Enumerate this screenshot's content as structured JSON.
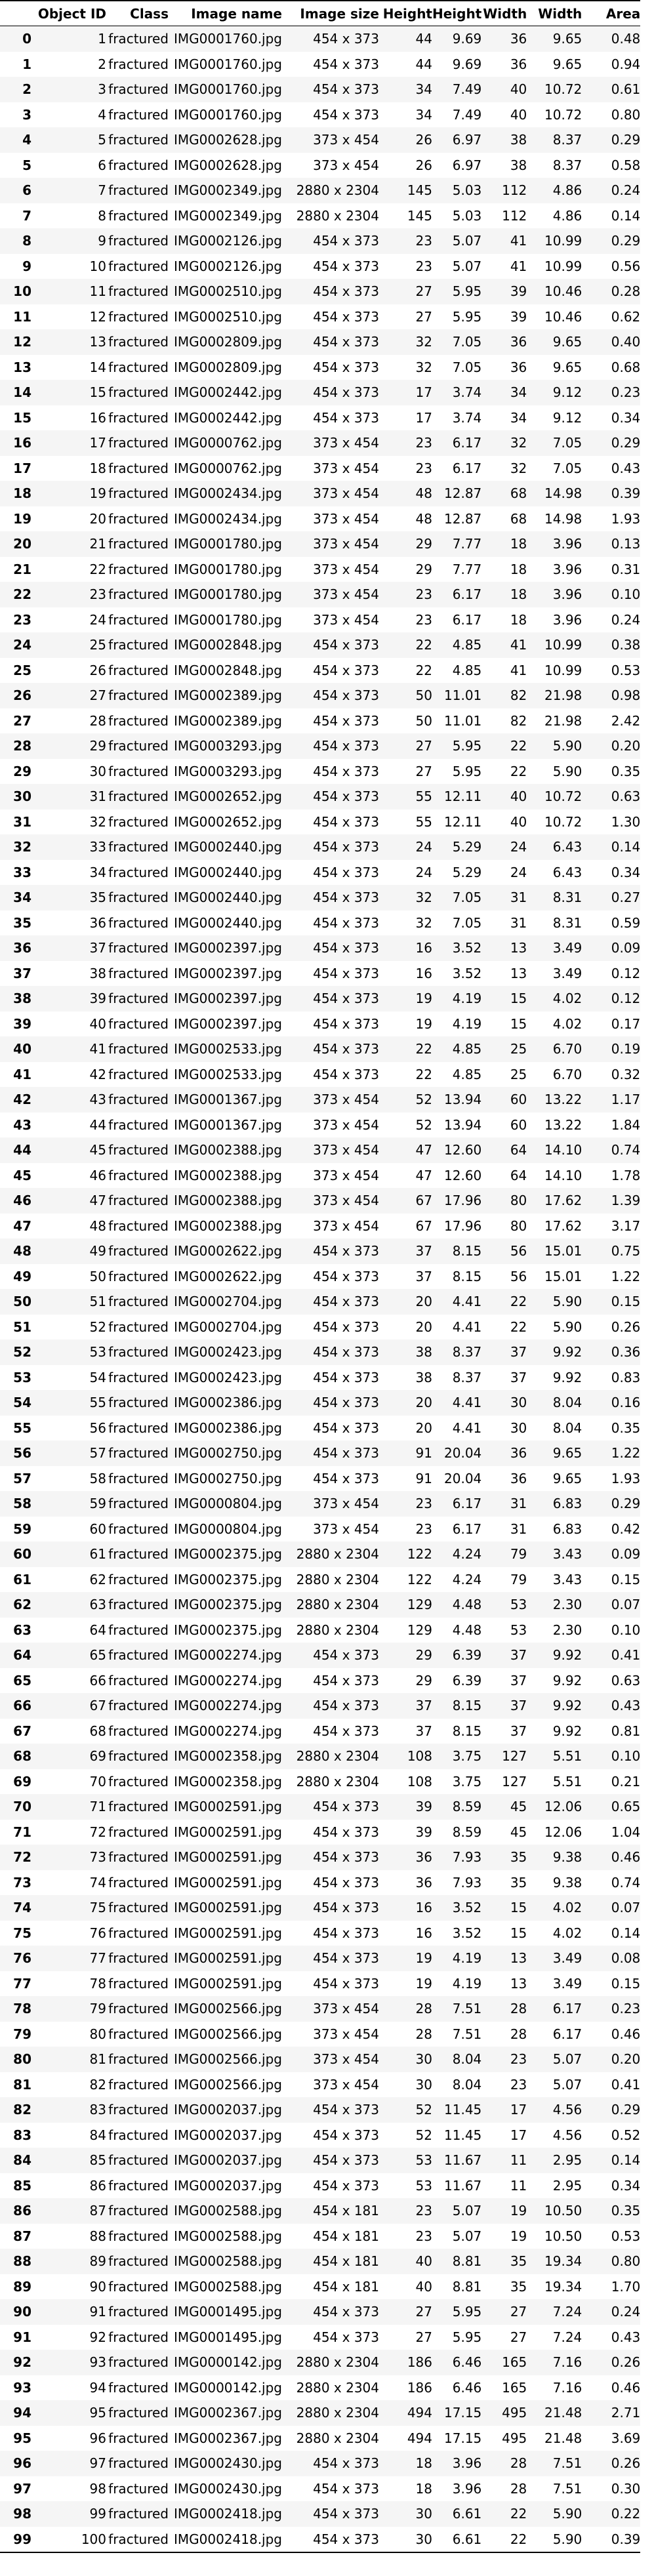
{
  "table": {
    "columns": [
      "",
      "Object ID",
      "Class",
      "Image name",
      "Image size",
      "Height",
      "Height",
      "Width",
      "Width",
      "Area"
    ],
    "rows": [
      [
        "0",
        "1",
        "fractured",
        "IMG0001760.jpg",
        "454 x 373",
        "44",
        "9.69",
        "36",
        "9.65",
        "0.48"
      ],
      [
        "1",
        "2",
        "fractured",
        "IMG0001760.jpg",
        "454 x 373",
        "44",
        "9.69",
        "36",
        "9.65",
        "0.94"
      ],
      [
        "2",
        "3",
        "fractured",
        "IMG0001760.jpg",
        "454 x 373",
        "34",
        "7.49",
        "40",
        "10.72",
        "0.61"
      ],
      [
        "3",
        "4",
        "fractured",
        "IMG0001760.jpg",
        "454 x 373",
        "34",
        "7.49",
        "40",
        "10.72",
        "0.80"
      ],
      [
        "4",
        "5",
        "fractured",
        "IMG0002628.jpg",
        "373 x 454",
        "26",
        "6.97",
        "38",
        "8.37",
        "0.29"
      ],
      [
        "5",
        "6",
        "fractured",
        "IMG0002628.jpg",
        "373 x 454",
        "26",
        "6.97",
        "38",
        "8.37",
        "0.58"
      ],
      [
        "6",
        "7",
        "fractured",
        "IMG0002349.jpg",
        "2880 x 2304",
        "145",
        "5.03",
        "112",
        "4.86",
        "0.24"
      ],
      [
        "7",
        "8",
        "fractured",
        "IMG0002349.jpg",
        "2880 x 2304",
        "145",
        "5.03",
        "112",
        "4.86",
        "0.14"
      ],
      [
        "8",
        "9",
        "fractured",
        "IMG0002126.jpg",
        "454 x 373",
        "23",
        "5.07",
        "41",
        "10.99",
        "0.29"
      ],
      [
        "9",
        "10",
        "fractured",
        "IMG0002126.jpg",
        "454 x 373",
        "23",
        "5.07",
        "41",
        "10.99",
        "0.56"
      ],
      [
        "10",
        "11",
        "fractured",
        "IMG0002510.jpg",
        "454 x 373",
        "27",
        "5.95",
        "39",
        "10.46",
        "0.28"
      ],
      [
        "11",
        "12",
        "fractured",
        "IMG0002510.jpg",
        "454 x 373",
        "27",
        "5.95",
        "39",
        "10.46",
        "0.62"
      ],
      [
        "12",
        "13",
        "fractured",
        "IMG0002809.jpg",
        "454 x 373",
        "32",
        "7.05",
        "36",
        "9.65",
        "0.40"
      ],
      [
        "13",
        "14",
        "fractured",
        "IMG0002809.jpg",
        "454 x 373",
        "32",
        "7.05",
        "36",
        "9.65",
        "0.68"
      ],
      [
        "14",
        "15",
        "fractured",
        "IMG0002442.jpg",
        "454 x 373",
        "17",
        "3.74",
        "34",
        "9.12",
        "0.23"
      ],
      [
        "15",
        "16",
        "fractured",
        "IMG0002442.jpg",
        "454 x 373",
        "17",
        "3.74",
        "34",
        "9.12",
        "0.34"
      ],
      [
        "16",
        "17",
        "fractured",
        "IMG0000762.jpg",
        "373 x 454",
        "23",
        "6.17",
        "32",
        "7.05",
        "0.29"
      ],
      [
        "17",
        "18",
        "fractured",
        "IMG0000762.jpg",
        "373 x 454",
        "23",
        "6.17",
        "32",
        "7.05",
        "0.43"
      ],
      [
        "18",
        "19",
        "fractured",
        "IMG0002434.jpg",
        "373 x 454",
        "48",
        "12.87",
        "68",
        "14.98",
        "0.39"
      ],
      [
        "19",
        "20",
        "fractured",
        "IMG0002434.jpg",
        "373 x 454",
        "48",
        "12.87",
        "68",
        "14.98",
        "1.93"
      ],
      [
        "20",
        "21",
        "fractured",
        "IMG0001780.jpg",
        "373 x 454",
        "29",
        "7.77",
        "18",
        "3.96",
        "0.13"
      ],
      [
        "21",
        "22",
        "fractured",
        "IMG0001780.jpg",
        "373 x 454",
        "29",
        "7.77",
        "18",
        "3.96",
        "0.31"
      ],
      [
        "22",
        "23",
        "fractured",
        "IMG0001780.jpg",
        "373 x 454",
        "23",
        "6.17",
        "18",
        "3.96",
        "0.10"
      ],
      [
        "23",
        "24",
        "fractured",
        "IMG0001780.jpg",
        "373 x 454",
        "23",
        "6.17",
        "18",
        "3.96",
        "0.24"
      ],
      [
        "24",
        "25",
        "fractured",
        "IMG0002848.jpg",
        "454 x 373",
        "22",
        "4.85",
        "41",
        "10.99",
        "0.38"
      ],
      [
        "25",
        "26",
        "fractured",
        "IMG0002848.jpg",
        "454 x 373",
        "22",
        "4.85",
        "41",
        "10.99",
        "0.53"
      ],
      [
        "26",
        "27",
        "fractured",
        "IMG0002389.jpg",
        "454 x 373",
        "50",
        "11.01",
        "82",
        "21.98",
        "0.98"
      ],
      [
        "27",
        "28",
        "fractured",
        "IMG0002389.jpg",
        "454 x 373",
        "50",
        "11.01",
        "82",
        "21.98",
        "2.42"
      ],
      [
        "28",
        "29",
        "fractured",
        "IMG0003293.jpg",
        "454 x 373",
        "27",
        "5.95",
        "22",
        "5.90",
        "0.20"
      ],
      [
        "29",
        "30",
        "fractured",
        "IMG0003293.jpg",
        "454 x 373",
        "27",
        "5.95",
        "22",
        "5.90",
        "0.35"
      ],
      [
        "30",
        "31",
        "fractured",
        "IMG0002652.jpg",
        "454 x 373",
        "55",
        "12.11",
        "40",
        "10.72",
        "0.63"
      ],
      [
        "31",
        "32",
        "fractured",
        "IMG0002652.jpg",
        "454 x 373",
        "55",
        "12.11",
        "40",
        "10.72",
        "1.30"
      ],
      [
        "32",
        "33",
        "fractured",
        "IMG0002440.jpg",
        "454 x 373",
        "24",
        "5.29",
        "24",
        "6.43",
        "0.14"
      ],
      [
        "33",
        "34",
        "fractured",
        "IMG0002440.jpg",
        "454 x 373",
        "24",
        "5.29",
        "24",
        "6.43",
        "0.34"
      ],
      [
        "34",
        "35",
        "fractured",
        "IMG0002440.jpg",
        "454 x 373",
        "32",
        "7.05",
        "31",
        "8.31",
        "0.27"
      ],
      [
        "35",
        "36",
        "fractured",
        "IMG0002440.jpg",
        "454 x 373",
        "32",
        "7.05",
        "31",
        "8.31",
        "0.59"
      ],
      [
        "36",
        "37",
        "fractured",
        "IMG0002397.jpg",
        "454 x 373",
        "16",
        "3.52",
        "13",
        "3.49",
        "0.09"
      ],
      [
        "37",
        "38",
        "fractured",
        "IMG0002397.jpg",
        "454 x 373",
        "16",
        "3.52",
        "13",
        "3.49",
        "0.12"
      ],
      [
        "38",
        "39",
        "fractured",
        "IMG0002397.jpg",
        "454 x 373",
        "19",
        "4.19",
        "15",
        "4.02",
        "0.12"
      ],
      [
        "39",
        "40",
        "fractured",
        "IMG0002397.jpg",
        "454 x 373",
        "19",
        "4.19",
        "15",
        "4.02",
        "0.17"
      ],
      [
        "40",
        "41",
        "fractured",
        "IMG0002533.jpg",
        "454 x 373",
        "22",
        "4.85",
        "25",
        "6.70",
        "0.19"
      ],
      [
        "41",
        "42",
        "fractured",
        "IMG0002533.jpg",
        "454 x 373",
        "22",
        "4.85",
        "25",
        "6.70",
        "0.32"
      ],
      [
        "42",
        "43",
        "fractured",
        "IMG0001367.jpg",
        "373 x 454",
        "52",
        "13.94",
        "60",
        "13.22",
        "1.17"
      ],
      [
        "43",
        "44",
        "fractured",
        "IMG0001367.jpg",
        "373 x 454",
        "52",
        "13.94",
        "60",
        "13.22",
        "1.84"
      ],
      [
        "44",
        "45",
        "fractured",
        "IMG0002388.jpg",
        "373 x 454",
        "47",
        "12.60",
        "64",
        "14.10",
        "0.74"
      ],
      [
        "45",
        "46",
        "fractured",
        "IMG0002388.jpg",
        "373 x 454",
        "47",
        "12.60",
        "64",
        "14.10",
        "1.78"
      ],
      [
        "46",
        "47",
        "fractured",
        "IMG0002388.jpg",
        "373 x 454",
        "67",
        "17.96",
        "80",
        "17.62",
        "1.39"
      ],
      [
        "47",
        "48",
        "fractured",
        "IMG0002388.jpg",
        "373 x 454",
        "67",
        "17.96",
        "80",
        "17.62",
        "3.17"
      ],
      [
        "48",
        "49",
        "fractured",
        "IMG0002622.jpg",
        "454 x 373",
        "37",
        "8.15",
        "56",
        "15.01",
        "0.75"
      ],
      [
        "49",
        "50",
        "fractured",
        "IMG0002622.jpg",
        "454 x 373",
        "37",
        "8.15",
        "56",
        "15.01",
        "1.22"
      ],
      [
        "50",
        "51",
        "fractured",
        "IMG0002704.jpg",
        "454 x 373",
        "20",
        "4.41",
        "22",
        "5.90",
        "0.15"
      ],
      [
        "51",
        "52",
        "fractured",
        "IMG0002704.jpg",
        "454 x 373",
        "20",
        "4.41",
        "22",
        "5.90",
        "0.26"
      ],
      [
        "52",
        "53",
        "fractured",
        "IMG0002423.jpg",
        "454 x 373",
        "38",
        "8.37",
        "37",
        "9.92",
        "0.36"
      ],
      [
        "53",
        "54",
        "fractured",
        "IMG0002423.jpg",
        "454 x 373",
        "38",
        "8.37",
        "37",
        "9.92",
        "0.83"
      ],
      [
        "54",
        "55",
        "fractured",
        "IMG0002386.jpg",
        "454 x 373",
        "20",
        "4.41",
        "30",
        "8.04",
        "0.16"
      ],
      [
        "55",
        "56",
        "fractured",
        "IMG0002386.jpg",
        "454 x 373",
        "20",
        "4.41",
        "30",
        "8.04",
        "0.35"
      ],
      [
        "56",
        "57",
        "fractured",
        "IMG0002750.jpg",
        "454 x 373",
        "91",
        "20.04",
        "36",
        "9.65",
        "1.22"
      ],
      [
        "57",
        "58",
        "fractured",
        "IMG0002750.jpg",
        "454 x 373",
        "91",
        "20.04",
        "36",
        "9.65",
        "1.93"
      ],
      [
        "58",
        "59",
        "fractured",
        "IMG0000804.jpg",
        "373 x 454",
        "23",
        "6.17",
        "31",
        "6.83",
        "0.29"
      ],
      [
        "59",
        "60",
        "fractured",
        "IMG0000804.jpg",
        "373 x 454",
        "23",
        "6.17",
        "31",
        "6.83",
        "0.42"
      ],
      [
        "60",
        "61",
        "fractured",
        "IMG0002375.jpg",
        "2880 x 2304",
        "122",
        "4.24",
        "79",
        "3.43",
        "0.09"
      ],
      [
        "61",
        "62",
        "fractured",
        "IMG0002375.jpg",
        "2880 x 2304",
        "122",
        "4.24",
        "79",
        "3.43",
        "0.15"
      ],
      [
        "62",
        "63",
        "fractured",
        "IMG0002375.jpg",
        "2880 x 2304",
        "129",
        "4.48",
        "53",
        "2.30",
        "0.07"
      ],
      [
        "63",
        "64",
        "fractured",
        "IMG0002375.jpg",
        "2880 x 2304",
        "129",
        "4.48",
        "53",
        "2.30",
        "0.10"
      ],
      [
        "64",
        "65",
        "fractured",
        "IMG0002274.jpg",
        "454 x 373",
        "29",
        "6.39",
        "37",
        "9.92",
        "0.41"
      ],
      [
        "65",
        "66",
        "fractured",
        "IMG0002274.jpg",
        "454 x 373",
        "29",
        "6.39",
        "37",
        "9.92",
        "0.63"
      ],
      [
        "66",
        "67",
        "fractured",
        "IMG0002274.jpg",
        "454 x 373",
        "37",
        "8.15",
        "37",
        "9.92",
        "0.43"
      ],
      [
        "67",
        "68",
        "fractured",
        "IMG0002274.jpg",
        "454 x 373",
        "37",
        "8.15",
        "37",
        "9.92",
        "0.81"
      ],
      [
        "68",
        "69",
        "fractured",
        "IMG0002358.jpg",
        "2880 x 2304",
        "108",
        "3.75",
        "127",
        "5.51",
        "0.10"
      ],
      [
        "69",
        "70",
        "fractured",
        "IMG0002358.jpg",
        "2880 x 2304",
        "108",
        "3.75",
        "127",
        "5.51",
        "0.21"
      ],
      [
        "70",
        "71",
        "fractured",
        "IMG0002591.jpg",
        "454 x 373",
        "39",
        "8.59",
        "45",
        "12.06",
        "0.65"
      ],
      [
        "71",
        "72",
        "fractured",
        "IMG0002591.jpg",
        "454 x 373",
        "39",
        "8.59",
        "45",
        "12.06",
        "1.04"
      ],
      [
        "72",
        "73",
        "fractured",
        "IMG0002591.jpg",
        "454 x 373",
        "36",
        "7.93",
        "35",
        "9.38",
        "0.46"
      ],
      [
        "73",
        "74",
        "fractured",
        "IMG0002591.jpg",
        "454 x 373",
        "36",
        "7.93",
        "35",
        "9.38",
        "0.74"
      ],
      [
        "74",
        "75",
        "fractured",
        "IMG0002591.jpg",
        "454 x 373",
        "16",
        "3.52",
        "15",
        "4.02",
        "0.07"
      ],
      [
        "75",
        "76",
        "fractured",
        "IMG0002591.jpg",
        "454 x 373",
        "16",
        "3.52",
        "15",
        "4.02",
        "0.14"
      ],
      [
        "76",
        "77",
        "fractured",
        "IMG0002591.jpg",
        "454 x 373",
        "19",
        "4.19",
        "13",
        "3.49",
        "0.08"
      ],
      [
        "77",
        "78",
        "fractured",
        "IMG0002591.jpg",
        "454 x 373",
        "19",
        "4.19",
        "13",
        "3.49",
        "0.15"
      ],
      [
        "78",
        "79",
        "fractured",
        "IMG0002566.jpg",
        "373 x 454",
        "28",
        "7.51",
        "28",
        "6.17",
        "0.23"
      ],
      [
        "79",
        "80",
        "fractured",
        "IMG0002566.jpg",
        "373 x 454",
        "28",
        "7.51",
        "28",
        "6.17",
        "0.46"
      ],
      [
        "80",
        "81",
        "fractured",
        "IMG0002566.jpg",
        "373 x 454",
        "30",
        "8.04",
        "23",
        "5.07",
        "0.20"
      ],
      [
        "81",
        "82",
        "fractured",
        "IMG0002566.jpg",
        "373 x 454",
        "30",
        "8.04",
        "23",
        "5.07",
        "0.41"
      ],
      [
        "82",
        "83",
        "fractured",
        "IMG0002037.jpg",
        "454 x 373",
        "52",
        "11.45",
        "17",
        "4.56",
        "0.29"
      ],
      [
        "83",
        "84",
        "fractured",
        "IMG0002037.jpg",
        "454 x 373",
        "52",
        "11.45",
        "17",
        "4.56",
        "0.52"
      ],
      [
        "84",
        "85",
        "fractured",
        "IMG0002037.jpg",
        "454 x 373",
        "53",
        "11.67",
        "11",
        "2.95",
        "0.14"
      ],
      [
        "85",
        "86",
        "fractured",
        "IMG0002037.jpg",
        "454 x 373",
        "53",
        "11.67",
        "11",
        "2.95",
        "0.34"
      ],
      [
        "86",
        "87",
        "fractured",
        "IMG0002588.jpg",
        "454 x 181",
        "23",
        "5.07",
        "19",
        "10.50",
        "0.35"
      ],
      [
        "87",
        "88",
        "fractured",
        "IMG0002588.jpg",
        "454 x 181",
        "23",
        "5.07",
        "19",
        "10.50",
        "0.53"
      ],
      [
        "88",
        "89",
        "fractured",
        "IMG0002588.jpg",
        "454 x 181",
        "40",
        "8.81",
        "35",
        "19.34",
        "0.80"
      ],
      [
        "89",
        "90",
        "fractured",
        "IMG0002588.jpg",
        "454 x 181",
        "40",
        "8.81",
        "35",
        "19.34",
        "1.70"
      ],
      [
        "90",
        "91",
        "fractured",
        "IMG0001495.jpg",
        "454 x 373",
        "27",
        "5.95",
        "27",
        "7.24",
        "0.24"
      ],
      [
        "91",
        "92",
        "fractured",
        "IMG0001495.jpg",
        "454 x 373",
        "27",
        "5.95",
        "27",
        "7.24",
        "0.43"
      ],
      [
        "92",
        "93",
        "fractured",
        "IMG0000142.jpg",
        "2880 x 2304",
        "186",
        "6.46",
        "165",
        "7.16",
        "0.26"
      ],
      [
        "93",
        "94",
        "fractured",
        "IMG0000142.jpg",
        "2880 x 2304",
        "186",
        "6.46",
        "165",
        "7.16",
        "0.46"
      ],
      [
        "94",
        "95",
        "fractured",
        "IMG0002367.jpg",
        "2880 x 2304",
        "494",
        "17.15",
        "495",
        "21.48",
        "2.71"
      ],
      [
        "95",
        "96",
        "fractured",
        "IMG0002367.jpg",
        "2880 x 2304",
        "494",
        "17.15",
        "495",
        "21.48",
        "3.69"
      ],
      [
        "96",
        "97",
        "fractured",
        "IMG0002430.jpg",
        "454 x 373",
        "18",
        "3.96",
        "28",
        "7.51",
        "0.26"
      ],
      [
        "97",
        "98",
        "fractured",
        "IMG0002430.jpg",
        "454 x 373",
        "18",
        "3.96",
        "28",
        "7.51",
        "0.30"
      ],
      [
        "98",
        "99",
        "fractured",
        "IMG0002418.jpg",
        "454 x 373",
        "30",
        "6.61",
        "22",
        "5.90",
        "0.22"
      ],
      [
        "99",
        "100",
        "fractured",
        "IMG0002418.jpg",
        "454 x 373",
        "30",
        "6.61",
        "22",
        "5.90",
        "0.39"
      ]
    ]
  }
}
